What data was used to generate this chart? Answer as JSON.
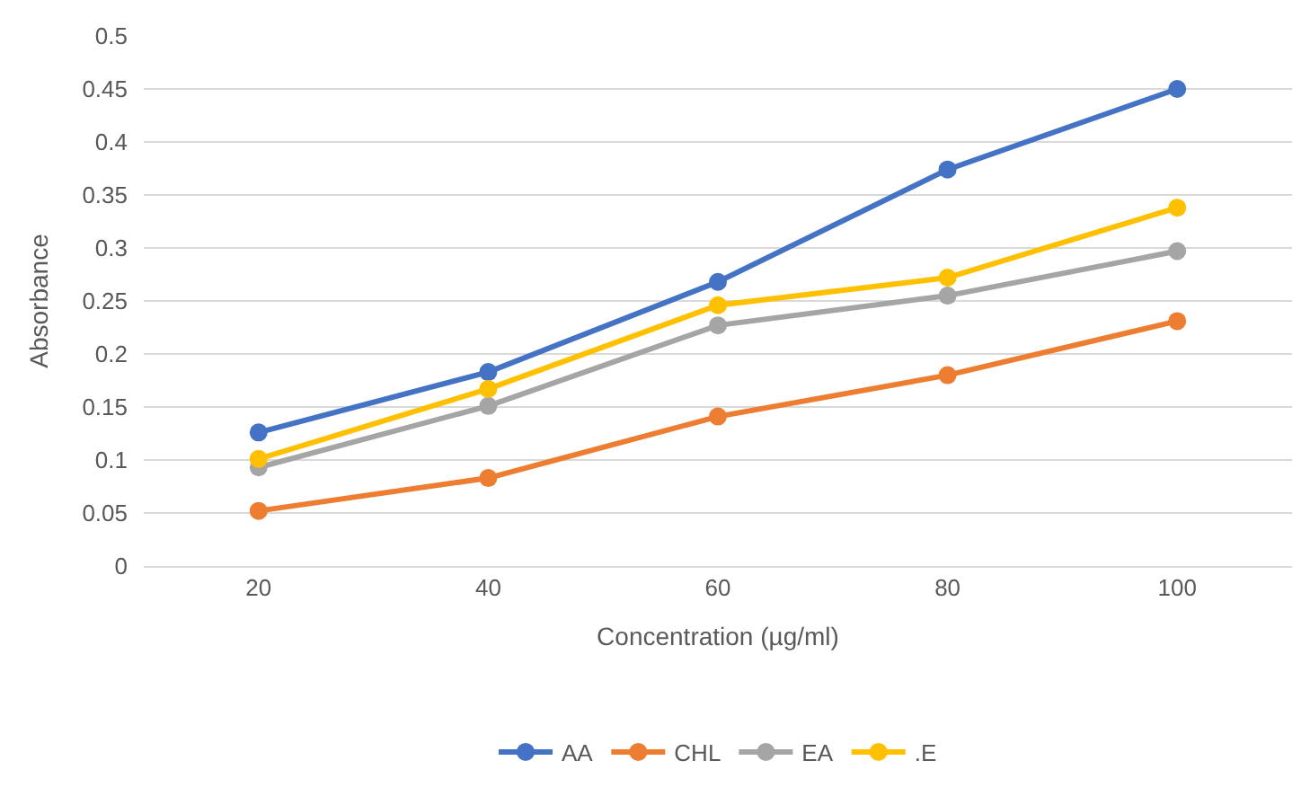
{
  "chart_data": {
    "type": "line",
    "xlabel": "Concentration (µg/ml)",
    "ylabel": "Absorbance",
    "categories": [
      "20",
      "40",
      "60",
      "80",
      "100"
    ],
    "series": [
      {
        "name": "AA",
        "color": "#4472c4",
        "values": [
          0.126,
          0.183,
          0.268,
          0.374,
          0.45
        ]
      },
      {
        "name": "CHL",
        "color": "#ed7d31",
        "values": [
          0.052,
          0.083,
          0.141,
          0.18,
          0.231
        ]
      },
      {
        "name": "EA",
        "color": "#a5a5a5",
        "values": [
          0.093,
          0.151,
          0.227,
          0.255,
          0.297
        ]
      },
      {
        "name": ".E",
        "color": "#ffc000",
        "values": [
          0.101,
          0.167,
          0.246,
          0.272,
          0.338
        ]
      }
    ],
    "ylim": [
      0,
      0.5
    ],
    "yticks": [
      0,
      0.05,
      0.1,
      0.15,
      0.2,
      0.25,
      0.3,
      0.35,
      0.4,
      0.45,
      0.5
    ],
    "grid": "y",
    "legend": "bottom",
    "marker": "circle",
    "line_style": "solid"
  }
}
